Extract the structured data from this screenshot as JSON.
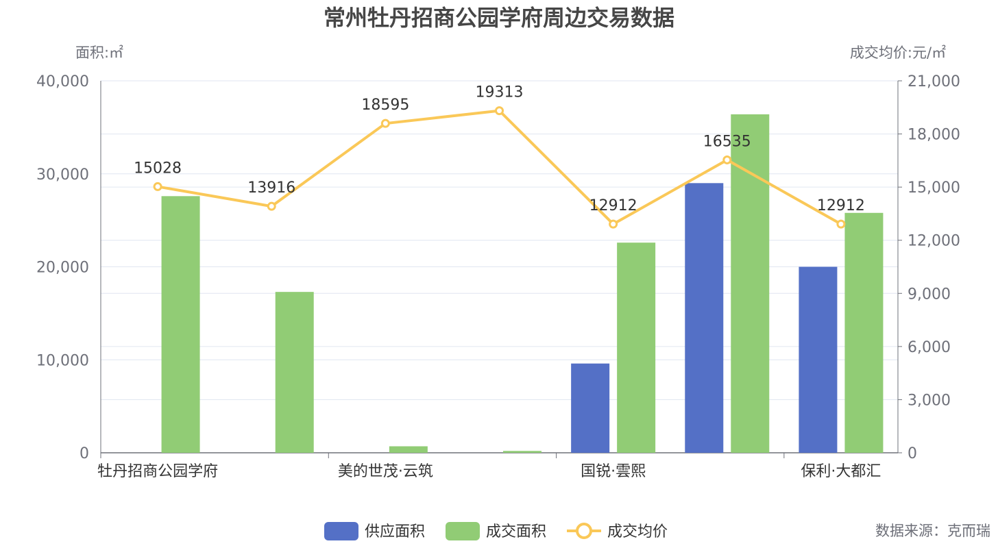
{
  "colors": {
    "supply": "#5470c6",
    "deal": "#91cc75",
    "price": "#fac858",
    "grid": "#e0e6f1",
    "axis": "#6e7079"
  },
  "chart_data": {
    "type": "bar",
    "title": "常州牡丹招商公园学府周边交易数据",
    "y_left_name": "面积:㎡",
    "y_right_name": "成交均价:元/㎡",
    "y_left_range": [
      0,
      40000
    ],
    "y_right_range": [
      0,
      21000
    ],
    "y_left_ticks": [
      "0",
      "10,000",
      "20,000",
      "30,000",
      "40,000"
    ],
    "y_right_ticks": [
      "0",
      "3,000",
      "6,000",
      "9,000",
      "12,000",
      "15,000",
      "18,000",
      "21,000"
    ],
    "categories": [
      "牡丹招商公园学府",
      "",
      "美的世茂·云筑",
      "",
      "国锐·雲熙",
      "",
      "保利·大都汇"
    ],
    "series": [
      {
        "name": "供应面积",
        "type": "bar",
        "axis": "left",
        "values": [
          0,
          0,
          0,
          0,
          9600,
          29000,
          20000
        ]
      },
      {
        "name": "成交面积",
        "type": "bar",
        "axis": "left",
        "values": [
          27600,
          17300,
          700,
          200,
          22600,
          36400,
          25800
        ]
      },
      {
        "name": "成交均价",
        "type": "line",
        "axis": "right",
        "values": [
          15028,
          13916,
          18595,
          19313,
          12912,
          16535,
          12912
        ]
      }
    ],
    "grid": true,
    "legend_position": "bottom-center"
  },
  "source_text": "数据来源：克而瑞"
}
